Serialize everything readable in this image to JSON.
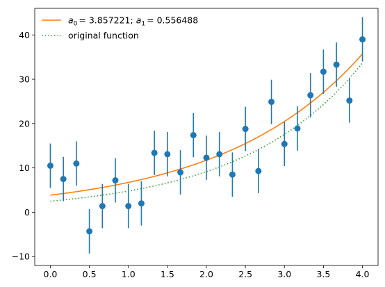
{
  "chart_data": {
    "type": "scatter",
    "title": "",
    "xlabel": "",
    "ylabel": "",
    "xlim": [
      -0.2,
      4.2
    ],
    "ylim": [
      -12,
      46
    ],
    "xticks": [
      0.0,
      0.5,
      1.0,
      1.5,
      2.0,
      2.5,
      3.0,
      3.5,
      4.0
    ],
    "xtick_labels": [
      "0.0",
      "0.5",
      "1.0",
      "1.5",
      "2.0",
      "2.5",
      "3.0",
      "3.5",
      "4.0"
    ],
    "yticks": [
      -10,
      0,
      10,
      20,
      30,
      40
    ],
    "ytick_labels": [
      "−10",
      "0",
      "10",
      "20",
      "30",
      "40"
    ],
    "grid": false,
    "legend_position": "top-left",
    "legend": {
      "fit_prefix_a0": "a",
      "fit_sub0": "0",
      "fit_value0": "= 3.857221;",
      "fit_prefix_a1": "a",
      "fit_sub1": "1",
      "fit_value1": "= 0.556488",
      "original_label": "original function"
    },
    "colors": {
      "data": "#1f77b4",
      "fit": "#ff7f0e",
      "original": "#2ca02c"
    },
    "fit_params": {
      "a0": 3.857221,
      "a1": 0.556488
    },
    "original_params": {
      "a0": 2.5,
      "a1": 0.65
    },
    "error": 5,
    "series": [
      {
        "kind": "errorbar",
        "x": [
          0.0,
          0.1667,
          0.3333,
          0.5,
          0.6667,
          0.8333,
          1.0,
          1.1667,
          1.3333,
          1.5,
          1.6667,
          1.8333,
          2.0,
          2.1667,
          2.3333,
          2.5,
          2.6667,
          2.8333,
          3.0,
          3.1667,
          3.3333,
          3.5,
          3.6667,
          3.8333,
          4.0
        ],
        "y": [
          10.5,
          7.5,
          11.0,
          -4.3,
          1.4,
          7.2,
          1.4,
          2.0,
          13.4,
          13.1,
          9.0,
          17.4,
          12.3,
          13.1,
          8.5,
          18.8,
          9.3,
          24.9,
          15.4,
          18.9,
          26.4,
          31.7,
          33.3,
          25.2,
          39.0
        ]
      }
    ]
  }
}
